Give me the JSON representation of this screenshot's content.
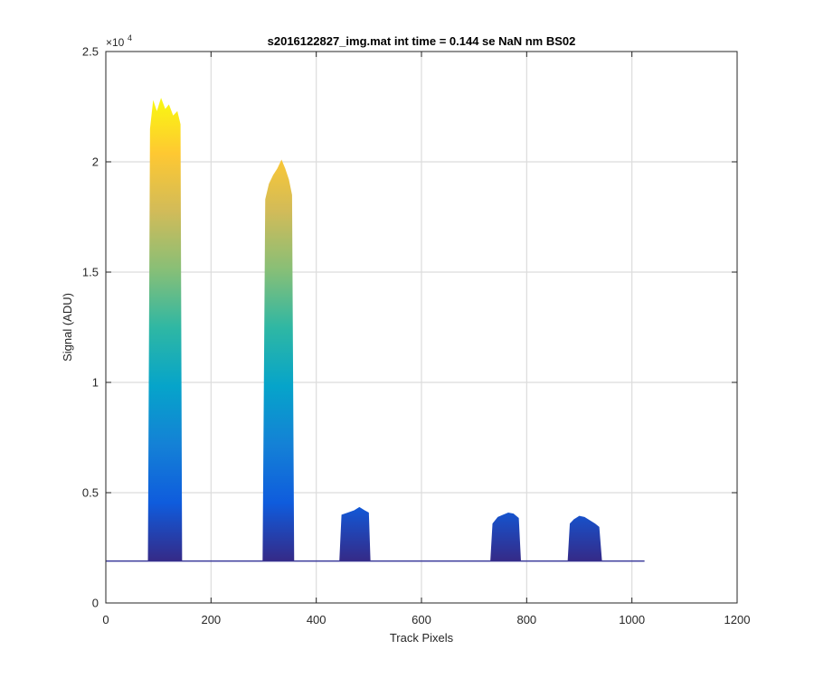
{
  "chart_data": {
    "type": "area",
    "title": "s2016122827_img.mat int time = 0.144 se  NaN nm BS02",
    "xlabel": "Track Pixels",
    "ylabel": "Signal (ADU)",
    "y_exponent_label": "×10",
    "y_exponent_power": "4",
    "xlim": [
      0,
      1200
    ],
    "ylim": [
      0,
      25000
    ],
    "xticks": [
      0,
      200,
      400,
      600,
      800,
      1000,
      1200
    ],
    "xtick_labels": [
      "0",
      "200",
      "400",
      "600",
      "800",
      "1000",
      "1200"
    ],
    "yticks": [
      0,
      5000,
      10000,
      15000,
      20000,
      25000
    ],
    "ytick_labels": [
      "0",
      "0.5",
      "1",
      "1.5",
      "2",
      "2.5"
    ],
    "grid": true,
    "colormap": "parula",
    "colormap_stops": [
      "#352a87",
      "#0f5cdd",
      "#1481d6",
      "#06a4ca",
      "#2eb7a4",
      "#87bf77",
      "#d1bb59",
      "#fec832",
      "#f9fb0e"
    ],
    "baseline_color": "#3a3a9a",
    "x_range": [
      0,
      1024
    ],
    "baseline": 1900,
    "series": [
      {
        "values": [
          {
            "x": 80,
            "y": 1950
          },
          {
            "x": 84,
            "y": 21500
          },
          {
            "x": 90,
            "y": 22800
          },
          {
            "x": 97,
            "y": 22300
          },
          {
            "x": 105,
            "y": 22900
          },
          {
            "x": 113,
            "y": 22400
          },
          {
            "x": 120,
            "y": 22600
          },
          {
            "x": 128,
            "y": 22100
          },
          {
            "x": 136,
            "y": 22300
          },
          {
            "x": 142,
            "y": 21700
          },
          {
            "x": 145,
            "y": 1950
          }
        ]
      },
      {
        "values": [
          {
            "x": 298,
            "y": 1950
          },
          {
            "x": 303,
            "y": 18300
          },
          {
            "x": 310,
            "y": 19000
          },
          {
            "x": 318,
            "y": 19400
          },
          {
            "x": 326,
            "y": 19700
          },
          {
            "x": 334,
            "y": 20100
          },
          {
            "x": 341,
            "y": 19700
          },
          {
            "x": 348,
            "y": 19200
          },
          {
            "x": 354,
            "y": 18500
          },
          {
            "x": 358,
            "y": 1950
          }
        ]
      },
      {
        "values": [
          {
            "x": 444,
            "y": 1950
          },
          {
            "x": 448,
            "y": 4000
          },
          {
            "x": 460,
            "y": 4100
          },
          {
            "x": 472,
            "y": 4200
          },
          {
            "x": 482,
            "y": 4350
          },
          {
            "x": 492,
            "y": 4200
          },
          {
            "x": 500,
            "y": 4100
          },
          {
            "x": 503,
            "y": 1950
          }
        ]
      },
      {
        "values": [
          {
            "x": 731,
            "y": 1950
          },
          {
            "x": 735,
            "y": 3600
          },
          {
            "x": 745,
            "y": 3900
          },
          {
            "x": 755,
            "y": 4000
          },
          {
            "x": 765,
            "y": 4100
          },
          {
            "x": 775,
            "y": 4050
          },
          {
            "x": 785,
            "y": 3850
          },
          {
            "x": 789,
            "y": 1950
          }
        ]
      },
      {
        "values": [
          {
            "x": 878,
            "y": 1950
          },
          {
            "x": 882,
            "y": 3600
          },
          {
            "x": 890,
            "y": 3800
          },
          {
            "x": 900,
            "y": 3950
          },
          {
            "x": 910,
            "y": 3900
          },
          {
            "x": 920,
            "y": 3750
          },
          {
            "x": 930,
            "y": 3600
          },
          {
            "x": 938,
            "y": 3450
          },
          {
            "x": 943,
            "y": 1950
          }
        ]
      }
    ]
  }
}
